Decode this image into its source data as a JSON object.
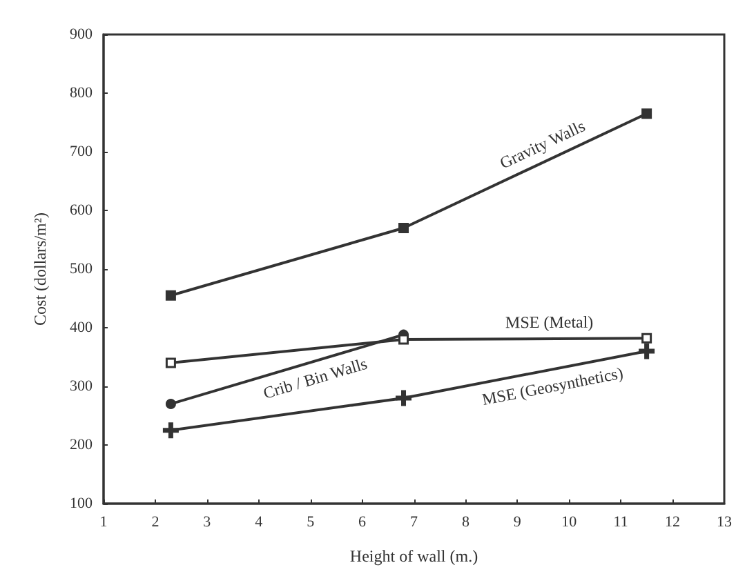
{
  "chart_data": {
    "type": "line",
    "xlabel": "Height of wall (m.)",
    "ylabel": "Cost (dollars/m²)",
    "xlim": [
      1,
      13
    ],
    "xticks": [
      1,
      2,
      3,
      4,
      5,
      6,
      7,
      8,
      9,
      10,
      11,
      12,
      13
    ],
    "ylim": [
      100,
      900
    ],
    "yticks": [
      100,
      200,
      300,
      400,
      500,
      600,
      700,
      800,
      900
    ],
    "grid": false,
    "legend": false,
    "line_style": "solid",
    "series": [
      {
        "name": "Gravity Walls",
        "color": "#333333",
        "marker": "square",
        "x": [
          2.3,
          6.8,
          11.5
        ],
        "values": [
          455,
          570,
          765
        ]
      },
      {
        "name": "MSE (Metal)",
        "color": "#333333",
        "marker": "square",
        "x": [
          2.3,
          6.8,
          11.5
        ],
        "values": [
          340,
          380,
          382
        ]
      },
      {
        "name": "Crib / Bin Walls",
        "color": "#333333",
        "marker": "circle",
        "x": [
          2.3,
          6.8
        ],
        "values": [
          270,
          388
        ]
      },
      {
        "name": "MSE (Geosynthetics)",
        "color": "#333333",
        "marker": "cross",
        "x": [
          2.3,
          6.8,
          11.5
        ],
        "values": [
          225,
          280,
          360
        ]
      }
    ]
  }
}
